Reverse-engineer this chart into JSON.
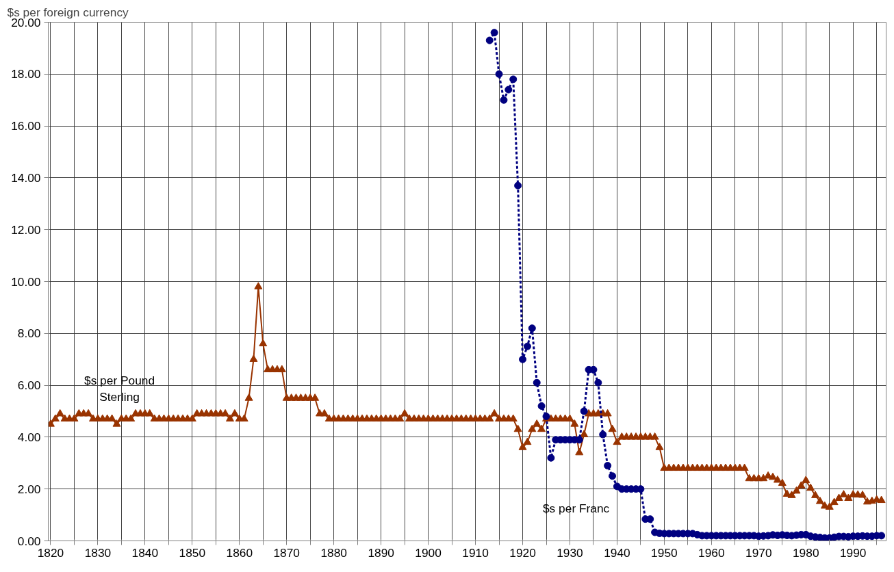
{
  "chart_data": {
    "type": "line",
    "ylabel": "$s per foreign currency",
    "xlim": [
      1819.5,
      1997
    ],
    "ylim": [
      0,
      20
    ],
    "xticks": [
      1820,
      {
        "value": 1825,
        "label": null
      },
      1830,
      {
        "value": 1835,
        "label": null
      },
      1840,
      {
        "value": 1845,
        "label": null
      },
      1850,
      {
        "value": 1855,
        "label": null
      },
      1860,
      {
        "value": 1865,
        "label": null
      },
      1870,
      {
        "value": 1875,
        "label": null
      },
      1880,
      {
        "value": 1885,
        "label": null
      },
      1890,
      {
        "value": 1895,
        "label": null
      },
      1900,
      {
        "value": 1905,
        "label": null
      },
      1910,
      {
        "value": 1915,
        "label": null
      },
      1920,
      {
        "value": 1925,
        "label": null
      },
      1930,
      {
        "value": 1935,
        "label": null
      },
      1940,
      {
        "value": 1945,
        "label": null
      },
      1950,
      {
        "value": 1955,
        "label": null
      },
      1960,
      {
        "value": 1965,
        "label": null
      },
      1970,
      {
        "value": 1975,
        "label": null
      },
      1980,
      {
        "value": 1985,
        "label": null
      },
      1990,
      {
        "value": 1995,
        "label": null
      }
    ],
    "yticks": [
      {
        "value": 0,
        "label": "0.00"
      },
      {
        "value": 2,
        "label": "2.00"
      },
      {
        "value": 4,
        "label": "4.00"
      },
      {
        "value": 6,
        "label": "6.00"
      },
      {
        "value": 8,
        "label": "8.00"
      },
      {
        "value": 10,
        "label": "10.00"
      },
      {
        "value": 12,
        "label": "12.00"
      },
      {
        "value": 14,
        "label": "14.00"
      },
      {
        "value": 16,
        "label": "16.00"
      },
      {
        "value": 18,
        "label": "18.00"
      },
      {
        "value": 20,
        "label": "20.00"
      }
    ],
    "grid": true,
    "legend": false,
    "series": [
      {
        "name": "$s per Pound Sterling",
        "color": "#993300",
        "marker": "triangle",
        "line_style": "solid",
        "x": [
          1820,
          1821,
          1822,
          1823,
          1824,
          1825,
          1826,
          1827,
          1828,
          1829,
          1830,
          1831,
          1832,
          1833,
          1834,
          1835,
          1836,
          1837,
          1838,
          1839,
          1840,
          1841,
          1842,
          1843,
          1844,
          1845,
          1846,
          1847,
          1848,
          1849,
          1850,
          1851,
          1852,
          1853,
          1854,
          1855,
          1856,
          1857,
          1858,
          1859,
          1860,
          1861,
          1862,
          1863,
          1864,
          1865,
          1866,
          1867,
          1868,
          1869,
          1870,
          1871,
          1872,
          1873,
          1874,
          1875,
          1876,
          1877,
          1878,
          1879,
          1880,
          1881,
          1882,
          1883,
          1884,
          1885,
          1886,
          1887,
          1888,
          1889,
          1890,
          1891,
          1892,
          1893,
          1894,
          1895,
          1896,
          1897,
          1898,
          1899,
          1900,
          1901,
          1902,
          1903,
          1904,
          1905,
          1906,
          1907,
          1908,
          1909,
          1910,
          1911,
          1912,
          1913,
          1914,
          1915,
          1916,
          1917,
          1918,
          1919,
          1920,
          1921,
          1922,
          1923,
          1924,
          1925,
          1926,
          1927,
          1928,
          1929,
          1930,
          1931,
          1932,
          1933,
          1934,
          1935,
          1936,
          1937,
          1938,
          1939,
          1940,
          1941,
          1942,
          1943,
          1944,
          1945,
          1946,
          1947,
          1948,
          1949,
          1950,
          1951,
          1952,
          1953,
          1954,
          1955,
          1956,
          1957,
          1958,
          1959,
          1960,
          1961,
          1962,
          1963,
          1964,
          1965,
          1966,
          1967,
          1968,
          1969,
          1970,
          1971,
          1972,
          1973,
          1974,
          1975,
          1976,
          1977,
          1978,
          1979,
          1980,
          1981,
          1982,
          1983,
          1984,
          1985,
          1986,
          1987,
          1988,
          1989,
          1990,
          1991,
          1992,
          1993,
          1994,
          1995,
          1996
        ],
        "values": [
          4.5,
          4.7,
          4.9,
          4.7,
          4.7,
          4.7,
          4.9,
          4.9,
          4.9,
          4.7,
          4.7,
          4.7,
          4.7,
          4.7,
          4.5,
          4.7,
          4.7,
          4.7,
          4.9,
          4.9,
          4.9,
          4.9,
          4.7,
          4.7,
          4.7,
          4.7,
          4.7,
          4.7,
          4.7,
          4.7,
          4.7,
          4.9,
          4.9,
          4.9,
          4.9,
          4.9,
          4.9,
          4.9,
          4.7,
          4.9,
          4.7,
          4.7,
          5.5,
          7.0,
          9.8,
          7.6,
          6.6,
          6.6,
          6.6,
          6.6,
          5.5,
          5.5,
          5.5,
          5.5,
          5.5,
          5.5,
          5.5,
          4.9,
          4.9,
          4.7,
          4.7,
          4.7,
          4.7,
          4.7,
          4.7,
          4.7,
          4.7,
          4.7,
          4.7,
          4.7,
          4.7,
          4.7,
          4.7,
          4.7,
          4.7,
          4.9,
          4.7,
          4.7,
          4.7,
          4.7,
          4.7,
          4.7,
          4.7,
          4.7,
          4.7,
          4.7,
          4.7,
          4.7,
          4.7,
          4.7,
          4.7,
          4.7,
          4.7,
          4.7,
          4.9,
          4.7,
          4.7,
          4.7,
          4.7,
          4.3,
          3.6,
          3.8,
          4.3,
          4.5,
          4.3,
          4.7,
          4.7,
          4.7,
          4.7,
          4.7,
          4.7,
          4.5,
          3.4,
          4.1,
          4.9,
          4.9,
          4.9,
          4.9,
          4.9,
          4.3,
          3.8,
          4.0,
          4.0,
          4.0,
          4.0,
          4.0,
          4.0,
          4.0,
          4.0,
          3.6,
          2.8,
          2.8,
          2.8,
          2.8,
          2.8,
          2.8,
          2.8,
          2.8,
          2.8,
          2.8,
          2.8,
          2.8,
          2.8,
          2.8,
          2.8,
          2.8,
          2.8,
          2.8,
          2.4,
          2.4,
          2.4,
          2.4,
          2.5,
          2.45,
          2.34,
          2.22,
          1.8,
          1.75,
          1.92,
          2.12,
          2.33,
          2.03,
          1.75,
          1.52,
          1.34,
          1.3,
          1.48,
          1.64,
          1.78,
          1.64,
          1.78,
          1.77,
          1.76,
          1.5,
          1.53,
          1.58,
          1.56
        ]
      },
      {
        "name": "$s per Franc",
        "color": "#000080",
        "marker": "circle",
        "line_style": "dashed",
        "x": [
          1913,
          1914,
          1915,
          1916,
          1917,
          1918,
          1919,
          1920,
          1921,
          1922,
          1923,
          1924,
          1925,
          1926,
          1927,
          1928,
          1929,
          1930,
          1931,
          1932,
          1933,
          1934,
          1935,
          1936,
          1937,
          1938,
          1939,
          1940,
          1941,
          1942,
          1943,
          1944,
          1945,
          1946,
          1947,
          1948,
          1949,
          1950,
          1951,
          1952,
          1953,
          1954,
          1955,
          1956,
          1957,
          1958,
          1959,
          1960,
          1961,
          1962,
          1963,
          1964,
          1965,
          1966,
          1967,
          1968,
          1969,
          1970,
          1971,
          1972,
          1973,
          1974,
          1975,
          1976,
          1977,
          1978,
          1979,
          1980,
          1981,
          1982,
          1983,
          1984,
          1985,
          1986,
          1987,
          1988,
          1989,
          1990,
          1991,
          1992,
          1993,
          1994,
          1995,
          1996
        ],
        "values": [
          19.3,
          19.6,
          18.0,
          17.0,
          17.4,
          17.8,
          13.7,
          7.0,
          7.5,
          8.2,
          6.1,
          5.2,
          4.8,
          3.2,
          3.9,
          3.9,
          3.9,
          3.9,
          3.9,
          3.9,
          5.0,
          6.6,
          6.6,
          6.1,
          4.1,
          2.9,
          2.5,
          2.1,
          2.0,
          2.0,
          2.0,
          2.0,
          2.0,
          0.84,
          0.84,
          0.33,
          0.29,
          0.28,
          0.28,
          0.28,
          0.28,
          0.28,
          0.28,
          0.28,
          0.24,
          0.2,
          0.2,
          0.2,
          0.2,
          0.2,
          0.2,
          0.2,
          0.2,
          0.2,
          0.2,
          0.2,
          0.2,
          0.18,
          0.19,
          0.2,
          0.23,
          0.21,
          0.23,
          0.21,
          0.2,
          0.22,
          0.24,
          0.24,
          0.18,
          0.15,
          0.13,
          0.11,
          0.11,
          0.14,
          0.17,
          0.17,
          0.16,
          0.18,
          0.18,
          0.19,
          0.18,
          0.18,
          0.2,
          0.2
        ]
      }
    ]
  }
}
